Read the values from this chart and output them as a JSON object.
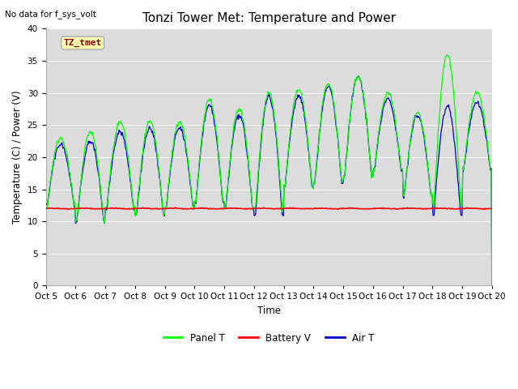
{
  "title": "Tonzi Tower Met: Temperature and Power",
  "xlabel": "Time",
  "ylabel": "Temperature (C) / Power (V)",
  "note": "No data for f_sys_volt",
  "annotation": "TZ_tmet",
  "ylim": [
    0,
    40
  ],
  "xlim": [
    0,
    15
  ],
  "yticks": [
    0,
    5,
    10,
    15,
    20,
    25,
    30,
    35,
    40
  ],
  "xtick_labels": [
    "Oct 5",
    "Oct 6",
    "Oct 7",
    "Oct 8",
    "Oct 9",
    "Oct 10",
    "Oct 11",
    "Oct 12",
    "Oct 13",
    "Oct 14",
    "Oct 15",
    "Oct 16",
    "Oct 17",
    "Oct 18",
    "Oct 19",
    "Oct 20"
  ],
  "bg_color": "#dcdcdc",
  "fig_color": "#ffffff",
  "panel_color": "#00ff00",
  "battery_color": "#ff0000",
  "air_color": "#0000cc",
  "legend_labels": [
    "Panel T",
    "Battery V",
    "Air T"
  ],
  "title_fontsize": 11,
  "tick_fontsize": 7.5,
  "ylabel_fontsize": 8.5,
  "xlabel_fontsize": 8.5,
  "note_fontsize": 7.5,
  "annot_fontsize": 8
}
